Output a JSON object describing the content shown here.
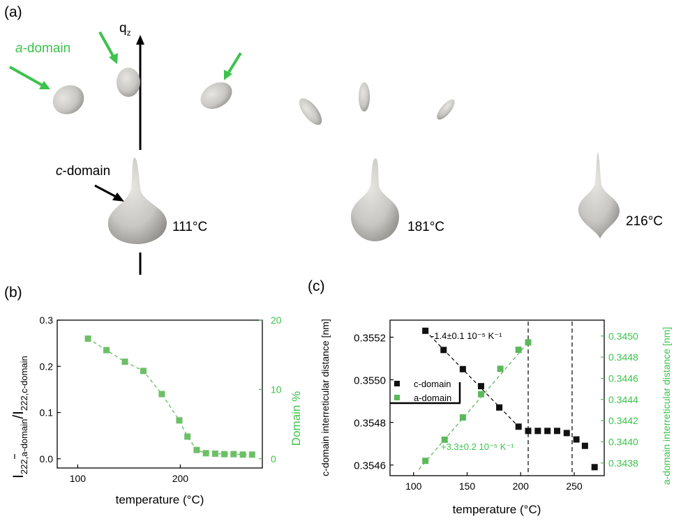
{
  "panel_a": {
    "label": "(a)",
    "axis_label": "q",
    "axis_sub": "z",
    "a_domain_italic": "a",
    "a_domain_rest": "-domain",
    "c_domain_italic": "c",
    "c_domain_rest": "-domain",
    "temps": [
      "111°C",
      "181°C",
      "216°C"
    ],
    "colors": {
      "green": "#3cc34b",
      "blob": "#c9c8c4"
    }
  },
  "panel_b": {
    "label": "(b)"
  },
  "panel_c": {
    "label": "(c)"
  },
  "chart_data": [
    {
      "type": "line",
      "xlabel": "temperature (°C)",
      "ylabel_parts": {
        "I": "I",
        "sub1": "222,a-domain",
        "slash": "/I",
        "sub2": "222,c-domain"
      },
      "y2label": "Domain %",
      "xlim": [
        80,
        280
      ],
      "ylim": [
        -0.02,
        0.3
      ],
      "y2lim": [
        -1.33,
        20
      ],
      "xticks": [
        "100",
        "200"
      ],
      "yticks": [
        "0.0",
        "0.1",
        "0.2",
        "0.3"
      ],
      "y2ticks": [
        "0",
        "10",
        "20"
      ],
      "series": [
        {
          "color": "#6dbf67",
          "x": [
            110,
            128,
            146,
            164,
            182,
            199,
            207,
            216,
            225,
            234,
            243,
            252,
            261,
            270
          ],
          "y": [
            0.26,
            0.235,
            0.21,
            0.19,
            0.14,
            0.083,
            0.048,
            0.019,
            0.012,
            0.011,
            0.01,
            0.01,
            0.009,
            0.009
          ]
        }
      ]
    },
    {
      "type": "scatter",
      "xlabel": "temperature (°C)",
      "ylabel": "c-domain interreticular distance [nm]",
      "y2label": "a-domain interreticular distance [nm]",
      "xlim": [
        78,
        278
      ],
      "ylim": [
        0.35455,
        0.35528
      ],
      "y2lim": [
        0.34368,
        0.34515
      ],
      "xticks": [
        "100",
        "150",
        "200",
        "250"
      ],
      "yticks": [
        "0.3546",
        "0.3548",
        "0.3550",
        "0.3552"
      ],
      "y2ticks": [
        "0.3438",
        "0.3440",
        "0.3442",
        "0.3444",
        "0.3446",
        "0.3448",
        "0.3450"
      ],
      "legend": {
        "items": [
          "c-domain",
          "a-domain"
        ],
        "placement": "center-left"
      },
      "annotations": [
        "-1.4±0.1 10⁻⁵ K⁻¹",
        "+3.3±0.2 10⁻⁵ K⁻¹"
      ],
      "vlines": [
        207,
        248
      ],
      "series": [
        {
          "name": "c-domain",
          "color": "#111111",
          "x": [
            111,
            128,
            146,
            163,
            180,
            198,
            207,
            216,
            225,
            234,
            243,
            252,
            260,
            269
          ],
          "y": [
            0.35523,
            0.35514,
            0.35505,
            0.35497,
            0.35487,
            0.35478,
            0.35476,
            0.35476,
            0.35476,
            0.35476,
            0.35475,
            0.35472,
            0.35469,
            0.35459
          ]
        },
        {
          "name": "a-domain",
          "color": "#5cb85c",
          "x": [
            111,
            129,
            146,
            163,
            181,
            198,
            207
          ],
          "y": [
            0.34382,
            0.34402,
            0.34423,
            0.34445,
            0.34469,
            0.34487,
            0.34494
          ]
        }
      ]
    }
  ]
}
